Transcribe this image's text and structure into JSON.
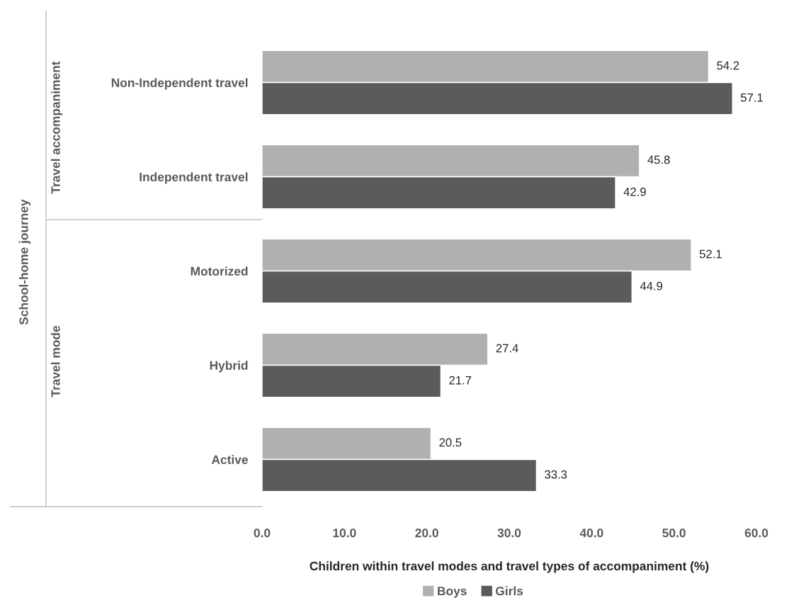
{
  "chart_data": {
    "type": "bar",
    "orientation": "horizontal",
    "categories": [
      "Non-Independent travel",
      "Independent travel",
      "Motorized",
      "Hybrid",
      "Active"
    ],
    "series": [
      {
        "name": "Boys",
        "color": "#b0b0b0",
        "values": [
          54.2,
          45.8,
          52.1,
          27.4,
          20.5
        ]
      },
      {
        "name": "Girls",
        "color": "#5b5b5b",
        "values": [
          57.1,
          42.9,
          44.9,
          21.7,
          33.3
        ]
      }
    ],
    "xlabel": "Children within travel modes and travel types of accompaniment (%)",
    "xlim": [
      0,
      60
    ],
    "xticks": [
      {
        "value": 0,
        "label": "0.0"
      },
      {
        "value": 10,
        "label": "10.0"
      },
      {
        "value": 20,
        "label": "20.0"
      },
      {
        "value": 30,
        "label": "30.0"
      },
      {
        "value": 40,
        "label": "40.0"
      },
      {
        "value": 50,
        "label": "50.0"
      },
      {
        "value": 60,
        "label": "60.0"
      }
    ],
    "annotations": [
      "School-home journey",
      "Travel accompaniment",
      "Travel mode"
    ],
    "data_labels": true,
    "grid": false,
    "legend": "bottom"
  }
}
